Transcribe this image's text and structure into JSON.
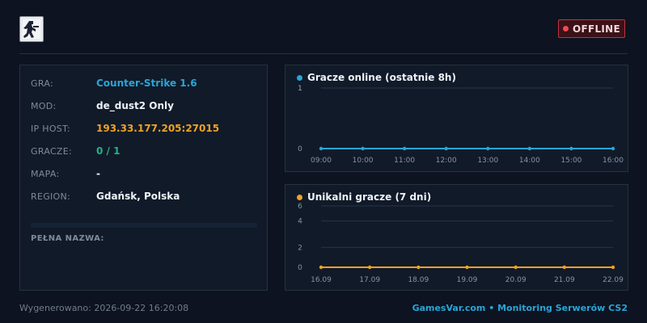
{
  "header": {
    "logo_icon": "counter-strike-logo-icon",
    "status": {
      "label": "OFFLINE",
      "color": "#ef4a55"
    }
  },
  "server": {
    "rows": [
      {
        "label": "GRA:",
        "value": "Counter-Strike 1.6",
        "tone": "game"
      },
      {
        "label": "MOD:",
        "value": "de_dust2 Only",
        "tone": "plain"
      },
      {
        "label": "IP HOST:",
        "value": "193.33.177.205:27015",
        "tone": "ip"
      },
      {
        "label": "GRACZE:",
        "value": "0 / 1",
        "tone": "players"
      },
      {
        "label": "MAPA:",
        "value": "-",
        "tone": "plain"
      },
      {
        "label": "REGION:",
        "value": "Gdańsk, Polska",
        "tone": "plain"
      }
    ],
    "full_name_label": "PEŁNA NAZWA:",
    "full_name_value": ""
  },
  "chart_data": [
    {
      "type": "line",
      "title": "Gracze online (ostatnie 8h)",
      "color": "#2aa5d6",
      "x": [
        "09:00",
        "10:00",
        "11:00",
        "12:00",
        "13:00",
        "14:00",
        "15:00",
        "16:00"
      ],
      "y_ticks": [
        "1",
        "1",
        "0"
      ],
      "series": [
        {
          "values": [
            0,
            0,
            0,
            0,
            0,
            0,
            0,
            0
          ]
        }
      ],
      "ylim": [
        0,
        1
      ],
      "grid": true
    },
    {
      "type": "line",
      "title": "Unikalni gracze (7 dni)",
      "color": "#efa324",
      "x": [
        "16.09",
        "17.09",
        "18.09",
        "19.09",
        "20.09",
        "21.09",
        "22.09"
      ],
      "y_ticks": [
        "6",
        "4",
        "2",
        "0"
      ],
      "series": [
        {
          "values": [
            0,
            0,
            0,
            0,
            0,
            0,
            0
          ]
        }
      ],
      "ylim": [
        0,
        6
      ],
      "grid": true
    }
  ],
  "footer": {
    "generated": "Wygenerowano: 2026-09-22 16:20:08",
    "brand": "GamesVar.com • Monitoring Serwerów CS2"
  }
}
